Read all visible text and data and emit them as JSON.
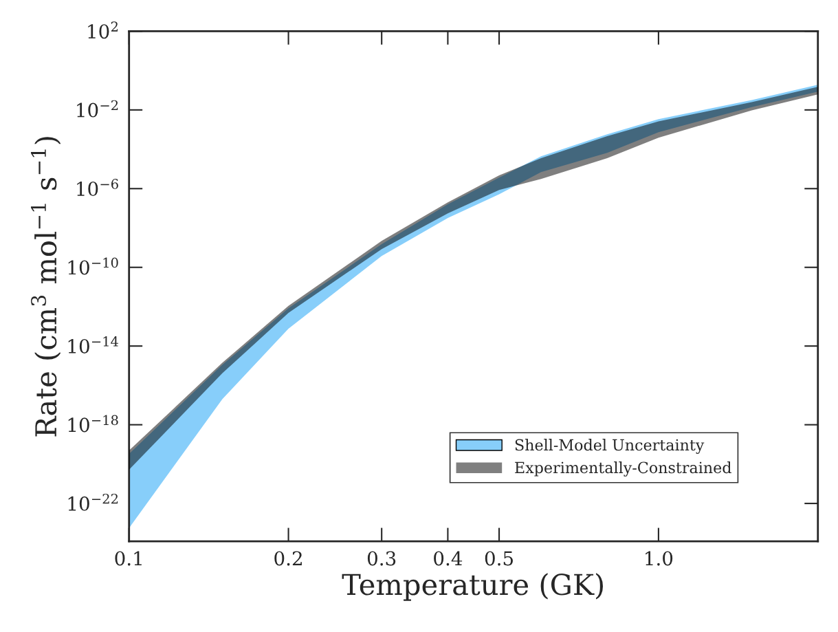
{
  "chart_data": {
    "type": "area",
    "xlabel": "Temperature (GK)",
    "ylabel": "Rate (cm$^{3}$ mol$^{−1}$ s$^{−1}$)",
    "log": "xy",
    "x": [
      0.1,
      0.15,
      0.2,
      0.3,
      0.4,
      0.5,
      0.6,
      0.8,
      1.0,
      1.5,
      2.0
    ],
    "series": [
      {
        "name": "Shell-Model Uncertainty",
        "color": "#87cefa",
        "values": [
          null,
          null,
          null,
          null,
          null,
          null,
          null,
          null,
          null,
          null,
          null
        ],
        "lower": [
          5.6e-24,
          2e-17,
          7.6e-14,
          3.8e-10,
          3.2e-08,
          5.2e-07,
          6.9e-06,
          6.6e-05,
          0.00074,
          0.014,
          0.085
        ],
        "upper": [
          3.3e-20,
          1.1e-15,
          8.3e-13,
          1.5e-09,
          1.6e-07,
          3.6e-06,
          4.4e-05,
          0.00058,
          0.0034,
          0.032,
          0.19
        ]
      },
      {
        "name": "Experimentally-Constrained",
        "color": "#000000",
        "values": [
          null,
          null,
          null,
          null,
          null,
          null,
          null,
          null,
          null,
          null,
          null
        ],
        "lower": [
          5.2e-21,
          4.1e-16,
          4.8e-13,
          8.5e-10,
          5.5e-08,
          8.5e-07,
          3.1e-06,
          3.5e-05,
          0.00039,
          0.0095,
          0.062
        ],
        "upper": [
          4.9e-20,
          1.4e-15,
          1.1e-12,
          2.2e-09,
          2e-07,
          4.7e-06,
          3.5e-05,
          0.00046,
          0.0026,
          0.025,
          0.15
        ]
      }
    ],
    "xlim": [
      0.1,
      2.0
    ],
    "xticks": [
      0.1,
      0.2,
      0.3,
      0.4,
      0.5,
      {
        "value": 1.0,
        "label": "1.0"
      }
    ],
    "ylim": [
      1.2e-24,
      100
    ],
    "yticks": [
      {
        "value": 100,
        "label": "10$^{2}$"
      },
      {
        "value": 0.01,
        "label": "10$^{−2}$"
      },
      {
        "value": 1e-06,
        "label": "10$^{−6}$"
      },
      {
        "value": 1e-10,
        "label": "10$^{−10}$"
      },
      {
        "value": 1e-14,
        "label": "10$^{−14}$"
      },
      {
        "value": 1e-18,
        "label": "10$^{−18}$"
      },
      {
        "value": 1e-22,
        "label": "10$^{−22}$"
      }
    ],
    "grid": false,
    "legend": "bottom right"
  }
}
